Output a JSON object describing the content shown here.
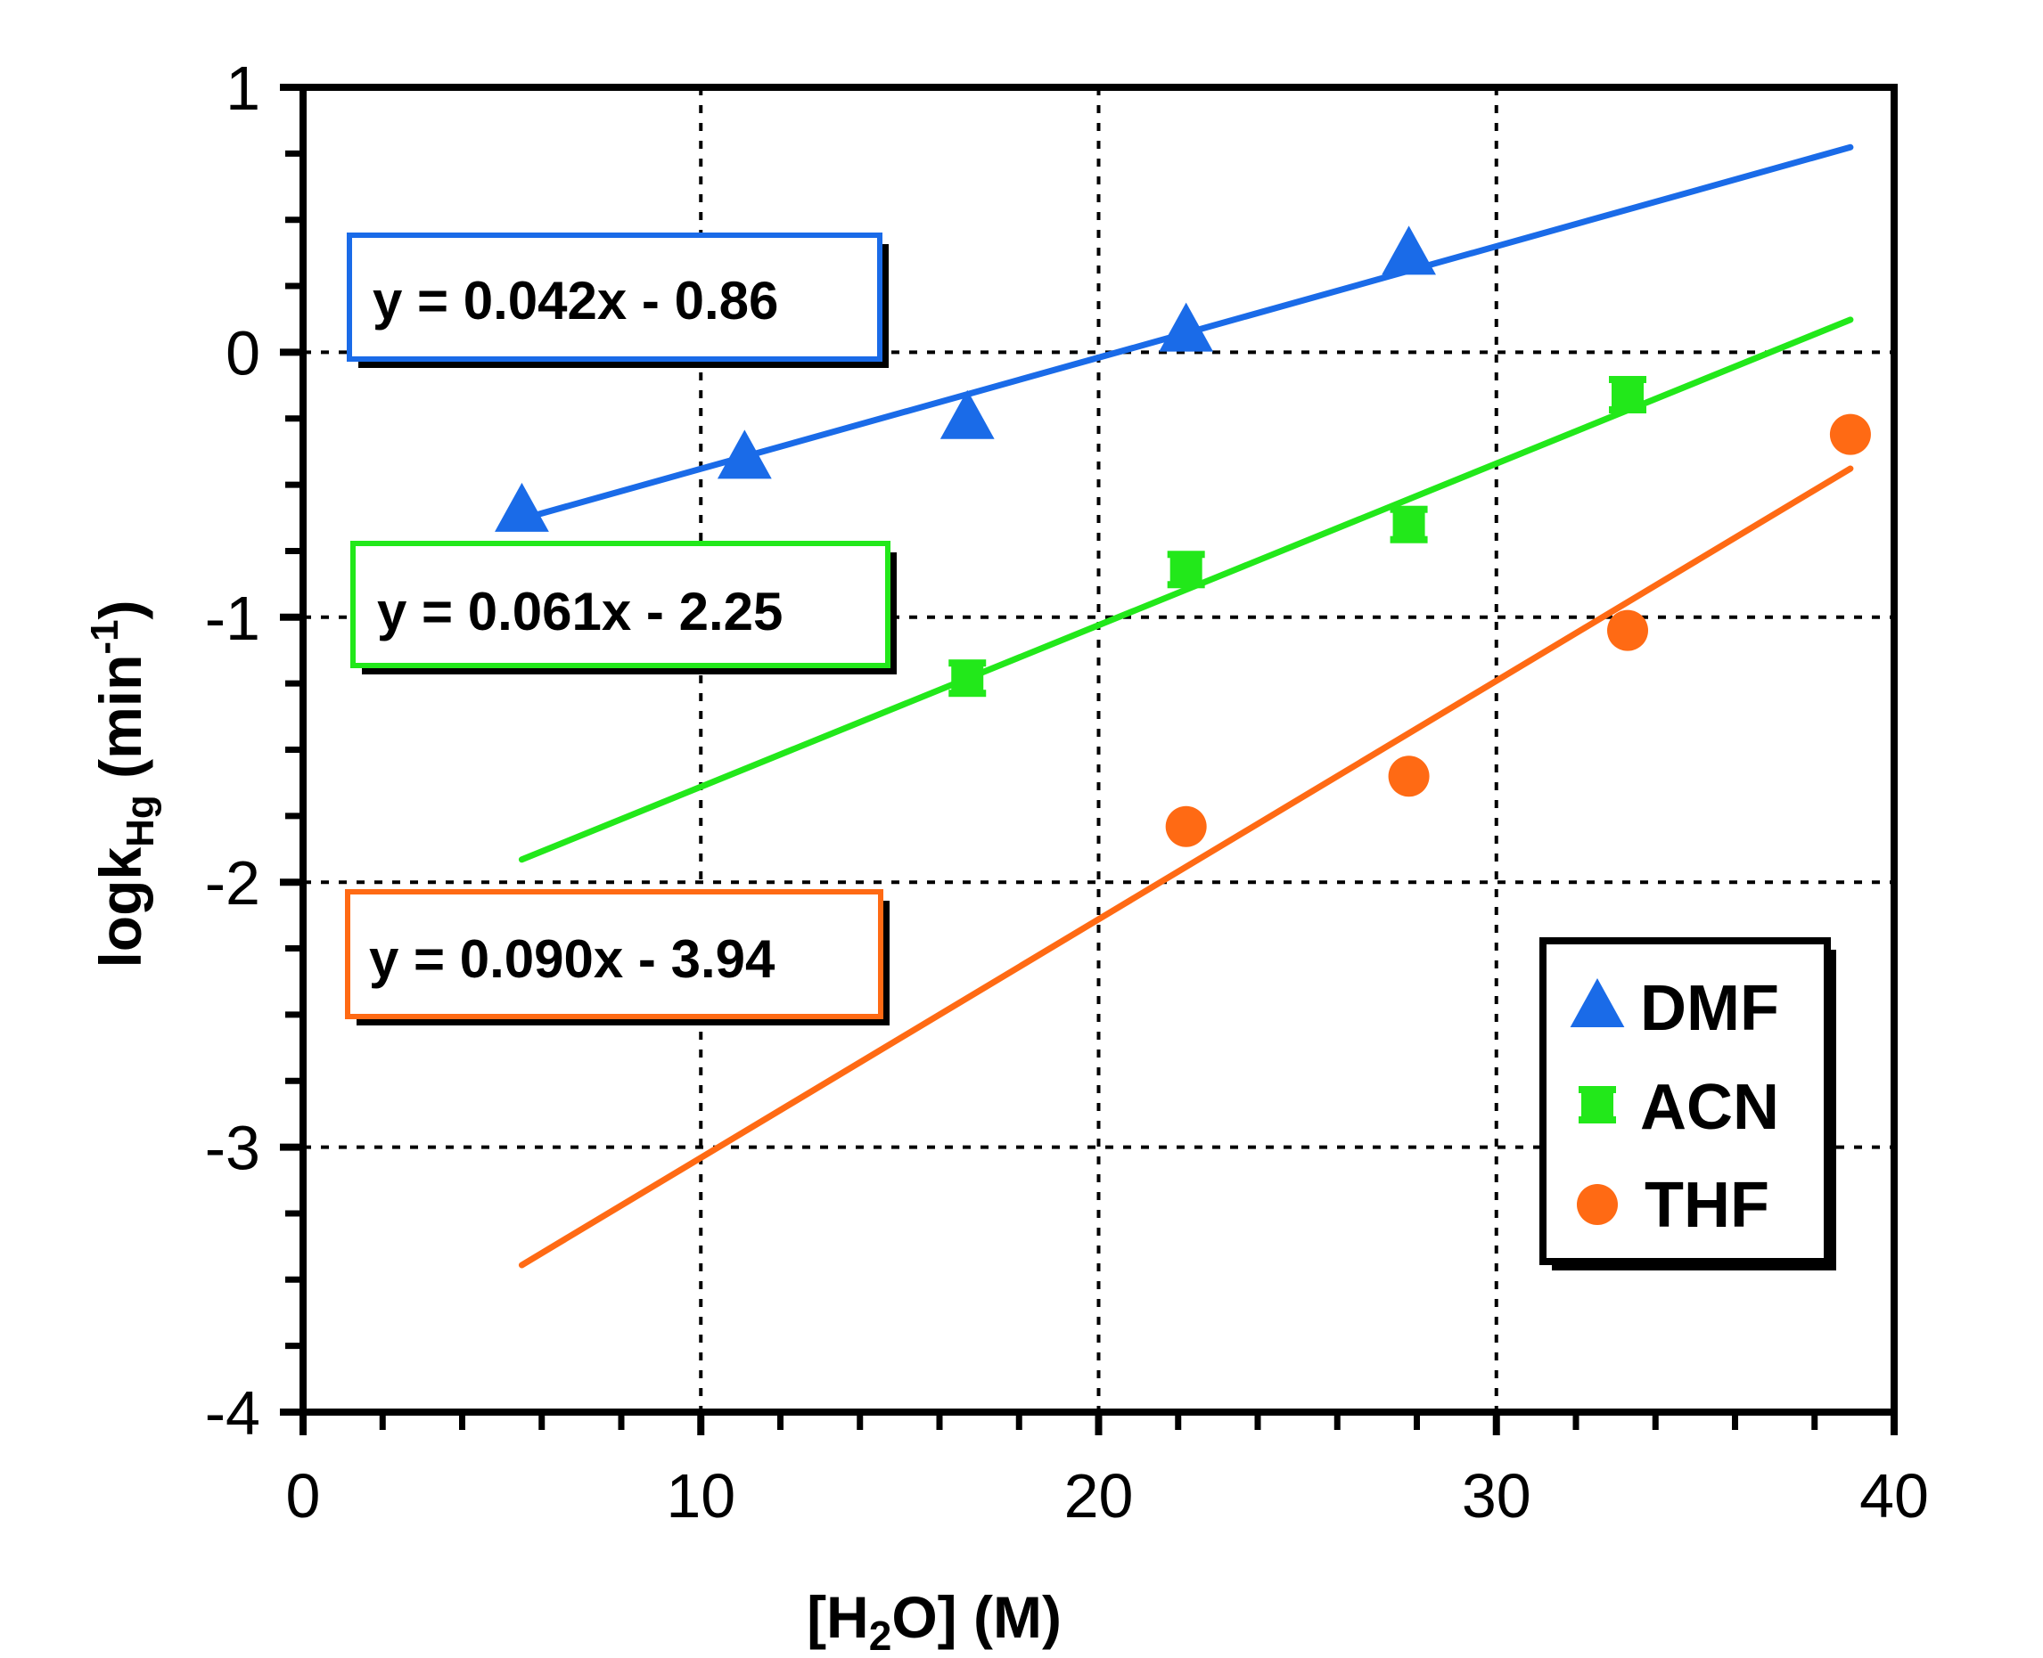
{
  "chart_data": {
    "type": "scatter",
    "xlabel_prefix": "[H",
    "xlabel_sub": "2",
    "xlabel_suffix": "O] (M)",
    "ylabel_prefix": "logk",
    "ylabel_sub": "Hg",
    "ylabel_mid": " (min",
    "ylabel_sup": "-1",
    "ylabel_end": ")",
    "xlim": [
      0,
      40
    ],
    "ylim": [
      -4,
      1
    ],
    "x_ticks": [
      "0",
      "10",
      "20",
      "30",
      "40"
    ],
    "y_ticks": [
      "1",
      "0",
      "-1",
      "-2",
      "-3",
      "-4"
    ],
    "x_tick_values": [
      0,
      10,
      20,
      30,
      40
    ],
    "y_tick_values": [
      1,
      0,
      -1,
      -2,
      -3,
      -4
    ],
    "grid": "dotted",
    "legend_position": "bottom-right",
    "series": [
      {
        "name": "DMF",
        "marker": "triangle",
        "color": "#1A6BE8",
        "x": [
          5.5,
          11.1,
          16.7,
          22.2,
          27.8
        ],
        "y": [
          -0.6,
          -0.4,
          -0.25,
          0.08,
          0.37
        ],
        "fit": {
          "slope": 0.042,
          "intercept": -0.86,
          "x_range": [
            5.5,
            38.9
          ]
        },
        "equation": "y = 0.042x - 0.86"
      },
      {
        "name": "ACN",
        "marker": "square",
        "color": "#22E81A",
        "x": [
          16.7,
          22.2,
          27.8,
          33.3
        ],
        "y": [
          -1.23,
          -0.82,
          -0.65,
          -0.16
        ],
        "fit": {
          "slope": 0.061,
          "intercept": -2.25,
          "x_range": [
            5.5,
            38.9
          ]
        },
        "equation": "y = 0.061x - 2.25"
      },
      {
        "name": "THF",
        "marker": "circle",
        "color": "#FF6A14",
        "x": [
          22.2,
          27.8,
          33.3,
          38.9
        ],
        "y": [
          -1.79,
          -1.6,
          -1.05,
          -0.31
        ],
        "fit": {
          "slope": 0.09,
          "intercept": -3.94,
          "x_range": [
            5.5,
            38.9
          ]
        },
        "equation": "y = 0.090x - 3.94"
      }
    ]
  }
}
